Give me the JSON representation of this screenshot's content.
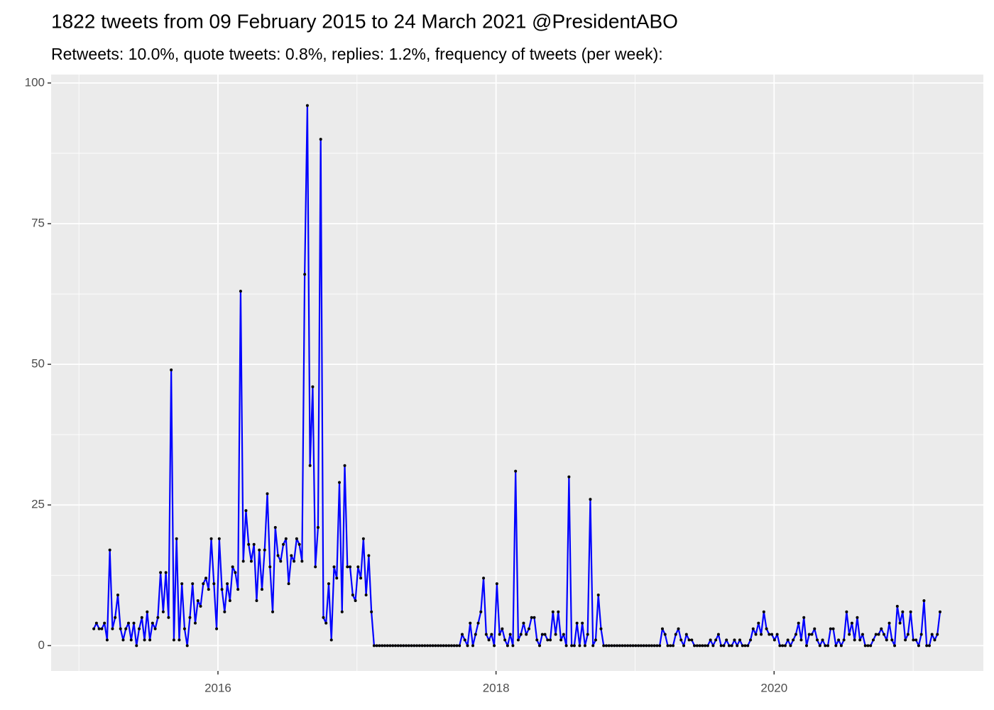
{
  "chart_data": {
    "type": "line",
    "title": "1822 tweets from 09 February 2015 to 24 March 2021 @PresidentABO",
    "subtitle": "Retweets: 10.0%, quote tweets: 0.8%, replies: 1.2%, frequency of tweets (per week):",
    "color": "#0000ff",
    "marker_color": "#000000",
    "grid": true,
    "xlim": [
      2014.8,
      2021.505
    ],
    "ylim": [
      -4.5,
      101.5
    ],
    "xticks": [
      2016,
      2018,
      2020
    ],
    "yticks": [
      0,
      25,
      50,
      75,
      100
    ],
    "x": [
      2015.107,
      2015.1262,
      2015.1454,
      2015.1646,
      2015.1838,
      2015.203,
      2015.2222,
      2015.2414,
      2015.2606,
      2015.2798,
      2015.299,
      2015.3182,
      2015.3374,
      2015.3566,
      2015.3758,
      2015.395,
      2015.4142,
      2015.4334,
      2015.4526,
      2015.4718,
      2015.491,
      2015.5102,
      2015.5294,
      2015.5486,
      2015.5678,
      2015.587,
      2015.6062,
      2015.6254,
      2015.6446,
      2015.6638,
      2015.683,
      2015.7022,
      2015.7214,
      2015.7406,
      2015.7598,
      2015.779,
      2015.7982,
      2015.8174,
      2015.8366,
      2015.8558,
      2015.875,
      2015.8942,
      2015.9134,
      2015.9326,
      2015.9518,
      2015.971,
      2015.9902,
      2016.0094,
      2016.0286,
      2016.0478,
      2016.067,
      2016.0862,
      2016.1054,
      2016.1246,
      2016.1438,
      2016.163,
      2016.1822,
      2016.2014,
      2016.2206,
      2016.2398,
      2016.259,
      2016.2782,
      2016.2974,
      2016.3166,
      2016.3358,
      2016.355,
      2016.3742,
      2016.3934,
      2016.4126,
      2016.4318,
      2016.451,
      2016.4702,
      2016.4894,
      2016.5086,
      2016.5278,
      2016.547,
      2016.5662,
      2016.5854,
      2016.6046,
      2016.6238,
      2016.643,
      2016.6622,
      2016.6814,
      2016.7006,
      2016.7198,
      2016.739,
      2016.7582,
      2016.7774,
      2016.7966,
      2016.8158,
      2016.835,
      2016.8542,
      2016.8734,
      2016.8926,
      2016.9118,
      2016.931,
      2016.9502,
      2016.9694,
      2016.9886,
      2017.0078,
      2017.027,
      2017.0462,
      2017.0654,
      2017.0846,
      2017.1038,
      2017.123,
      2017.1422,
      2017.1614,
      2017.1806,
      2017.1998,
      2017.219,
      2017.2382,
      2017.2574,
      2017.2766,
      2017.2958,
      2017.315,
      2017.3342,
      2017.3534,
      2017.3726,
      2017.3918,
      2017.411,
      2017.4302,
      2017.4494,
      2017.4686,
      2017.4878,
      2017.507,
      2017.5262,
      2017.5454,
      2017.5646,
      2017.5838,
      2017.603,
      2017.6222,
      2017.6414,
      2017.6606,
      2017.6798,
      2017.699,
      2017.7182,
      2017.7374,
      2017.7566,
      2017.7758,
      2017.795,
      2017.8142,
      2017.8334,
      2017.8526,
      2017.8718,
      2017.891,
      2017.9102,
      2017.9294,
      2017.9486,
      2017.9678,
      2017.987,
      2018.0062,
      2018.0254,
      2018.0446,
      2018.0638,
      2018.083,
      2018.1022,
      2018.1214,
      2018.1406,
      2018.1598,
      2018.179,
      2018.1982,
      2018.2174,
      2018.2366,
      2018.2558,
      2018.275,
      2018.2942,
      2018.3134,
      2018.3326,
      2018.3518,
      2018.371,
      2018.3902,
      2018.4094,
      2018.4286,
      2018.4478,
      2018.467,
      2018.4862,
      2018.5054,
      2018.5246,
      2018.5438,
      2018.563,
      2018.5822,
      2018.6014,
      2018.6206,
      2018.6398,
      2018.659,
      2018.6782,
      2018.6974,
      2018.7166,
      2018.7358,
      2018.755,
      2018.7742,
      2018.7934,
      2018.8126,
      2018.8318,
      2018.851,
      2018.8702,
      2018.8894,
      2018.9086,
      2018.9278,
      2018.947,
      2018.9662,
      2018.9854,
      2019.0046,
      2019.0238,
      2019.043,
      2019.0622,
      2019.0814,
      2019.1006,
      2019.1198,
      2019.139,
      2019.1582,
      2019.1774,
      2019.1966,
      2019.2158,
      2019.235,
      2019.2542,
      2019.2734,
      2019.2926,
      2019.3118,
      2019.331,
      2019.3502,
      2019.3694,
      2019.3886,
      2019.4078,
      2019.427,
      2019.4462,
      2019.4654,
      2019.4846,
      2019.5038,
      2019.523,
      2019.5422,
      2019.5614,
      2019.5806,
      2019.5998,
      2019.619,
      2019.6382,
      2019.6574,
      2019.6766,
      2019.6958,
      2019.715,
      2019.7342,
      2019.7534,
      2019.7726,
      2019.7918,
      2019.811,
      2019.8302,
      2019.8494,
      2019.8686,
      2019.8878,
      2019.907,
      2019.9262,
      2019.9454,
      2019.9646,
      2019.9838,
      2020.003,
      2020.0222,
      2020.0414,
      2020.0606,
      2020.0798,
      2020.099,
      2020.1182,
      2020.1374,
      2020.1566,
      2020.1758,
      2020.195,
      2020.2142,
      2020.2334,
      2020.2526,
      2020.2718,
      2020.291,
      2020.3102,
      2020.3294,
      2020.3486,
      2020.3678,
      2020.387,
      2020.4062,
      2020.4254,
      2020.4446,
      2020.4638,
      2020.483,
      2020.5022,
      2020.5214,
      2020.5406,
      2020.5598,
      2020.579,
      2020.5982,
      2020.6174,
      2020.6366,
      2020.6558,
      2020.675,
      2020.6942,
      2020.7134,
      2020.7326,
      2020.7518,
      2020.771,
      2020.7902,
      2020.8094,
      2020.8286,
      2020.8478,
      2020.867,
      2020.8862,
      2020.9054,
      2020.9246,
      2020.9438,
      2020.963,
      2020.9822,
      2021.0014,
      2021.0206,
      2021.0398,
      2021.059,
      2021.0782,
      2021.0974,
      2021.1166,
      2021.1358,
      2021.155,
      2021.1742,
      2021.1934
    ],
    "values": [
      3,
      4,
      3,
      3,
      4,
      1,
      17,
      3,
      5,
      9,
      3,
      1,
      3,
      4,
      1,
      4,
      0,
      3,
      5,
      1,
      6,
      1,
      4,
      3,
      5,
      13,
      6,
      13,
      5,
      49,
      1,
      19,
      1,
      11,
      3,
      0,
      5,
      11,
      4,
      8,
      7,
      11,
      12,
      10,
      19,
      11,
      3,
      19,
      10,
      6,
      11,
      8,
      14,
      13,
      10,
      63,
      15,
      24,
      18,
      15,
      18,
      8,
      17,
      10,
      17,
      27,
      14,
      6,
      21,
      16,
      15,
      18,
      19,
      11,
      16,
      15,
      19,
      18,
      15,
      66,
      96,
      32,
      46,
      14,
      21,
      90,
      5,
      4,
      11,
      1,
      14,
      12,
      29,
      6,
      32,
      14,
      14,
      9,
      8,
      14,
      12,
      19,
      9,
      16,
      6,
      0,
      0,
      0,
      0,
      0,
      0,
      0,
      0,
      0,
      0,
      0,
      0,
      0,
      0,
      0,
      0,
      0,
      0,
      0,
      0,
      0,
      0,
      0,
      0,
      0,
      0,
      0,
      0,
      0,
      0,
      0,
      0,
      0,
      2,
      1,
      0,
      4,
      0,
      2,
      4,
      6,
      12,
      2,
      1,
      2,
      0,
      11,
      2,
      3,
      1,
      0,
      2,
      0,
      31,
      1,
      2,
      4,
      2,
      3,
      5,
      5,
      1,
      0,
      2,
      2,
      1,
      1,
      6,
      2,
      6,
      1,
      2,
      0,
      30,
      0,
      0,
      4,
      0,
      4,
      0,
      2,
      26,
      0,
      1,
      9,
      3,
      0,
      0,
      0,
      0,
      0,
      0,
      0,
      0,
      0,
      0,
      0,
      0,
      0,
      0,
      0,
      0,
      0,
      0,
      0,
      0,
      0,
      0,
      3,
      2,
      0,
      0,
      0,
      2,
      3,
      1,
      0,
      2,
      1,
      1,
      0,
      0,
      0,
      0,
      0,
      0,
      1,
      0,
      1,
      2,
      0,
      0,
      1,
      0,
      0,
      1,
      0,
      1,
      0,
      0,
      0,
      1,
      3,
      2,
      4,
      2,
      6,
      3,
      2,
      2,
      1,
      2,
      0,
      0,
      0,
      1,
      0,
      1,
      2,
      4,
      1,
      5,
      0,
      2,
      2,
      3,
      1,
      0,
      1,
      0,
      0,
      3,
      3,
      0,
      1,
      0,
      1,
      6,
      2,
      4,
      1,
      5,
      1,
      2,
      0,
      0,
      0,
      1,
      2,
      2,
      3,
      2,
      1,
      4,
      1,
      0,
      7,
      4,
      6,
      1,
      2,
      6,
      1,
      1,
      0,
      2,
      8,
      0,
      0,
      2,
      1,
      2,
      6
    ]
  }
}
